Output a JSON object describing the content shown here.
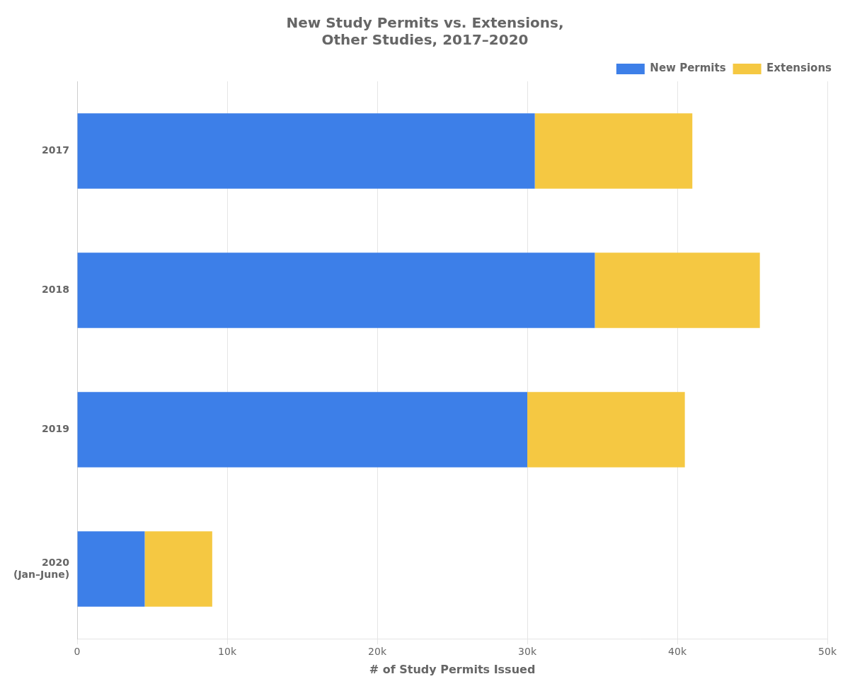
{
  "chart_data": {
    "type": "bar",
    "orientation": "horizontal",
    "stacked": true,
    "title": "New Study Permits vs. Extensions,\nOther Studies, 2017–2020",
    "xlabel": "# of Study Permits Issued",
    "categories": [
      "2017",
      "2018",
      "2019",
      "2020\n(Jan–June)"
    ],
    "series": [
      {
        "name": "New Permits",
        "color": "#3d7fe8",
        "values": [
          30500,
          34500,
          30000,
          4500
        ]
      },
      {
        "name": "Extensions",
        "color": "#f5c842",
        "values": [
          10500,
          11000,
          10500,
          4500
        ]
      }
    ],
    "xlim": [
      0,
      50000
    ],
    "xticks": [
      0,
      {
        "value": 10000,
        "label": "10k"
      },
      {
        "value": 20000,
        "label": "20k"
      },
      {
        "value": 30000,
        "label": "30k"
      },
      {
        "value": 40000,
        "label": "40k"
      },
      {
        "value": 50000,
        "label": "50k"
      }
    ],
    "grid": true,
    "legend": "upper right"
  }
}
